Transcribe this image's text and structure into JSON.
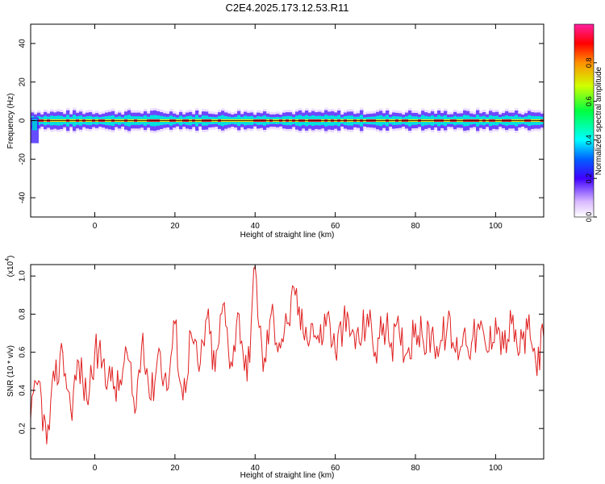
{
  "title": "C2E4.2025.173.12.53.R11",
  "chart_data": [
    {
      "type": "heatmap",
      "xlabel": "Height of straight line (km)",
      "ylabel": "Frequency (Hz)",
      "xlim": [
        -16,
        112
      ],
      "ylim": [
        -50,
        50
      ],
      "x_ticks": [
        "0",
        "20",
        "40",
        "60",
        "80",
        "100"
      ],
      "y_ticks": [
        "40",
        "20",
        "0",
        "-20",
        "-40"
      ],
      "colorbar": {
        "label": "Normalized spectral amplitude",
        "range": [
          0,
          1
        ],
        "ticks": [
          "0.0",
          "0.2",
          "0.4",
          "0.6",
          "0.8"
        ]
      },
      "band": {
        "center_frequency": 0,
        "description_values": {
          "typical_halfwidth_hz": 3,
          "peak_amplitude": 0.95
        }
      }
    },
    {
      "type": "line",
      "xlabel": "Height of straight line (km)",
      "ylabel": "SNR (10 * v/v)",
      "y_multiplier_label": "(x10",
      "y_multiplier_exp": "4",
      "xlim": [
        -16,
        112
      ],
      "ylim": [
        0.04,
        1.06
      ],
      "x_ticks": [
        "0",
        "20",
        "40",
        "60",
        "80",
        "100"
      ],
      "y_ticks": [
        "1.0",
        "0.8",
        "0.6",
        "0.4",
        "0.2"
      ],
      "color": "#e02020",
      "x": [
        -16,
        -14,
        -12,
        -10,
        -8,
        -6,
        -4,
        -2,
        0,
        2,
        4,
        6,
        8,
        10,
        12,
        14,
        16,
        18,
        20,
        22,
        24,
        26,
        28,
        30,
        32,
        34,
        36,
        38,
        40,
        42,
        44,
        46,
        48,
        50,
        52,
        54,
        56,
        58,
        60,
        62,
        64,
        66,
        68,
        70,
        72,
        74,
        76,
        78,
        80,
        82,
        84,
        86,
        88,
        90,
        92,
        94,
        96,
        98,
        100,
        102,
        104,
        106,
        108,
        110,
        112
      ],
      "y": [
        0.25,
        0.45,
        0.12,
        0.45,
        0.6,
        0.3,
        0.55,
        0.35,
        0.6,
        0.55,
        0.45,
        0.4,
        0.6,
        0.28,
        0.7,
        0.35,
        0.62,
        0.4,
        0.75,
        0.35,
        0.7,
        0.5,
        0.78,
        0.5,
        0.85,
        0.55,
        0.8,
        0.45,
        1.05,
        0.5,
        0.8,
        0.65,
        0.75,
        0.9,
        0.7,
        0.75,
        0.65,
        0.8,
        0.6,
        0.75,
        0.7,
        0.65,
        0.8,
        0.6,
        0.75,
        0.65,
        0.7,
        0.6,
        0.75,
        0.65,
        0.7,
        0.62,
        0.75,
        0.6,
        0.7,
        0.65,
        0.72,
        0.6,
        0.78,
        0.62,
        0.75,
        0.6,
        0.72,
        0.55,
        0.68
      ]
    }
  ]
}
